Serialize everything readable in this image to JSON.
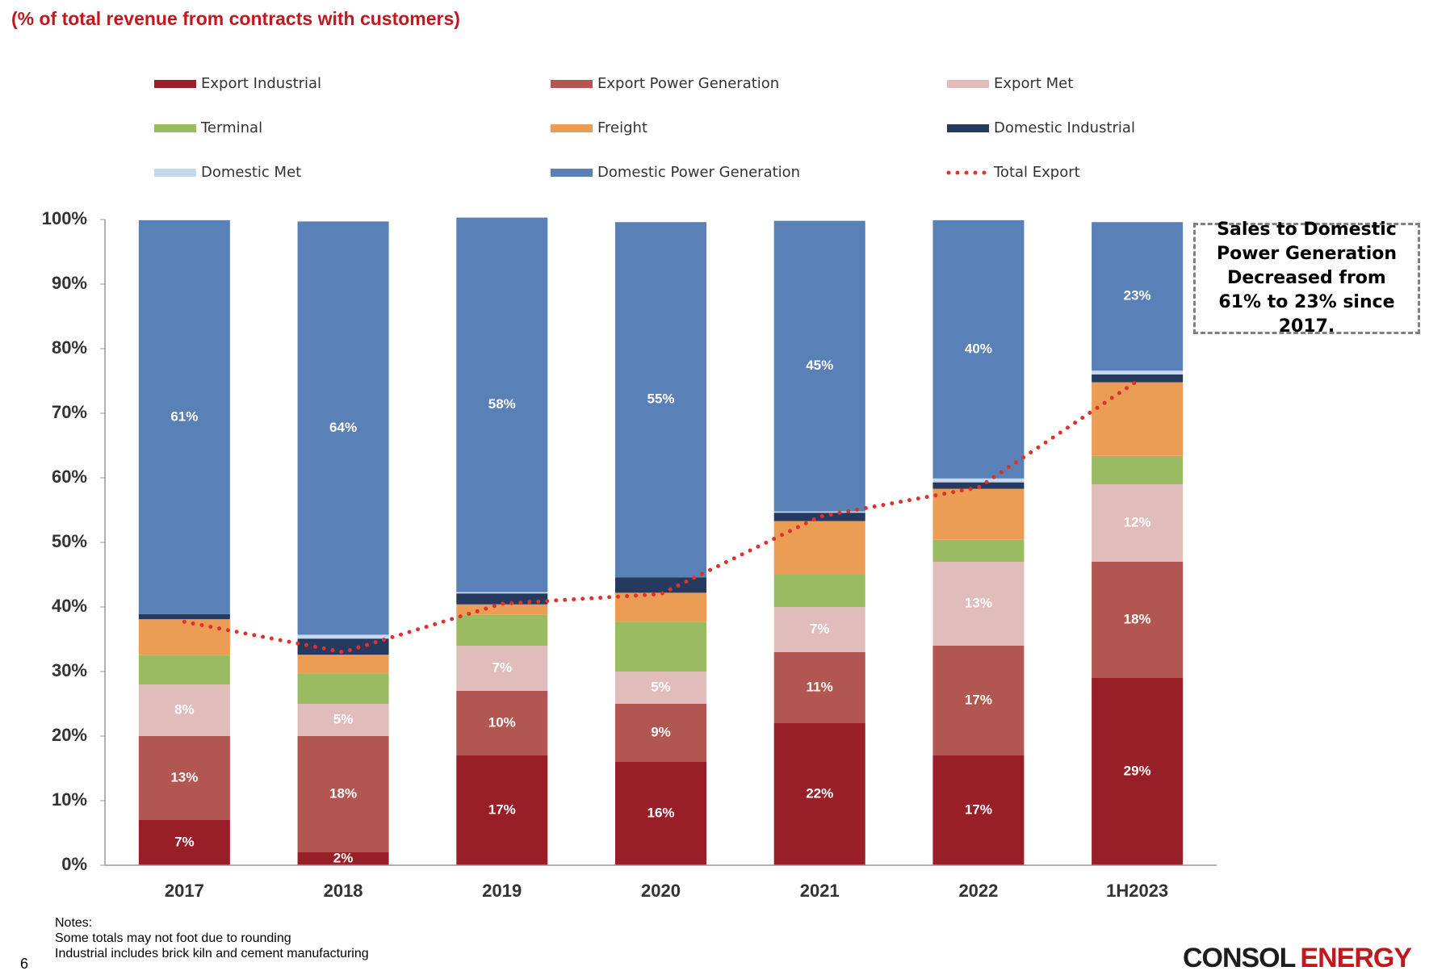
{
  "chart_data": {
    "type": "bar",
    "stacked": true,
    "title": "(% of total revenue from contracts with customers)",
    "categories": [
      "2017",
      "2018",
      "2019",
      "2020",
      "2021",
      "2022",
      "1H2023"
    ],
    "series": [
      {
        "name": "Export Industrial",
        "color": "#981e28",
        "values": [
          7,
          2,
          17,
          16,
          22,
          17,
          29
        ],
        "value_labels": [
          "7%",
          "2%",
          "17%",
          "16%",
          "22%",
          "17%",
          "29%"
        ]
      },
      {
        "name": "Export Power Generation",
        "color": "#b15650",
        "values": [
          13,
          18,
          10,
          9,
          11,
          17,
          18
        ],
        "value_labels": [
          "13%",
          "18%",
          "10%",
          "9%",
          "11%",
          "17%",
          "18%"
        ]
      },
      {
        "name": "Export Met",
        "color": "#e0bcbb",
        "values": [
          8,
          5,
          7,
          5,
          7,
          13,
          12
        ],
        "value_labels": [
          "8%",
          "5%",
          "7%",
          "5%",
          "7%",
          "13%",
          "12%"
        ]
      },
      {
        "name": "Terminal",
        "color": "#9bbb63",
        "values": [
          4.6,
          4.7,
          4.8,
          7.7,
          5,
          3.4,
          4.4
        ]
      },
      {
        "name": "Freight",
        "color": "#eb9d55",
        "values": [
          5.5,
          2.9,
          1.6,
          4.5,
          8.3,
          7.9,
          11.4
        ]
      },
      {
        "name": "Domestic Industrial",
        "color": "#253a5e",
        "values": [
          0.8,
          2.5,
          1.7,
          2.4,
          1.3,
          1,
          1.2
        ]
      },
      {
        "name": "Domestic Met",
        "color": "#c6d8ee",
        "values": [
          0,
          0.6,
          0.2,
          0,
          0.2,
          0.6,
          0.6
        ]
      },
      {
        "name": "Domestic Power Generation",
        "color": "#5a80b8",
        "values": [
          61,
          64,
          58,
          55,
          45,
          40,
          23
        ],
        "value_labels": [
          "61%",
          "64%",
          "58%",
          "55%",
          "45%",
          "40%",
          "23%"
        ]
      },
      {
        "name": "Total Export",
        "type": "line",
        "color": "#e0312b",
        "values": [
          37.7,
          33,
          40.5,
          42,
          54,
          58.5,
          75
        ]
      }
    ],
    "ylim": [
      0,
      100
    ],
    "yticks": [
      {
        "value": 0,
        "label": "0%"
      },
      {
        "value": 10,
        "label": "10%"
      },
      {
        "value": 20,
        "label": "20%"
      },
      {
        "value": 30,
        "label": "30%"
      },
      {
        "value": 40,
        "label": "40%"
      },
      {
        "value": 50,
        "label": "50%"
      },
      {
        "value": 60,
        "label": "60%"
      },
      {
        "value": 70,
        "label": "70%"
      },
      {
        "value": 80,
        "label": "80%"
      },
      {
        "value": 90,
        "label": "90%"
      },
      {
        "value": 100,
        "label": "100%"
      }
    ],
    "grid": false,
    "annotation": "Sales to Domestic Power Generation Decreased from 61% to 23% since 2017.",
    "notes": [
      "Notes:",
      "Some totals may not foot due to rounding",
      "Industrial includes brick kiln and cement manufacturing"
    ],
    "page_number": "6",
    "logo": [
      "CONSOL",
      "ENERGY"
    ]
  }
}
